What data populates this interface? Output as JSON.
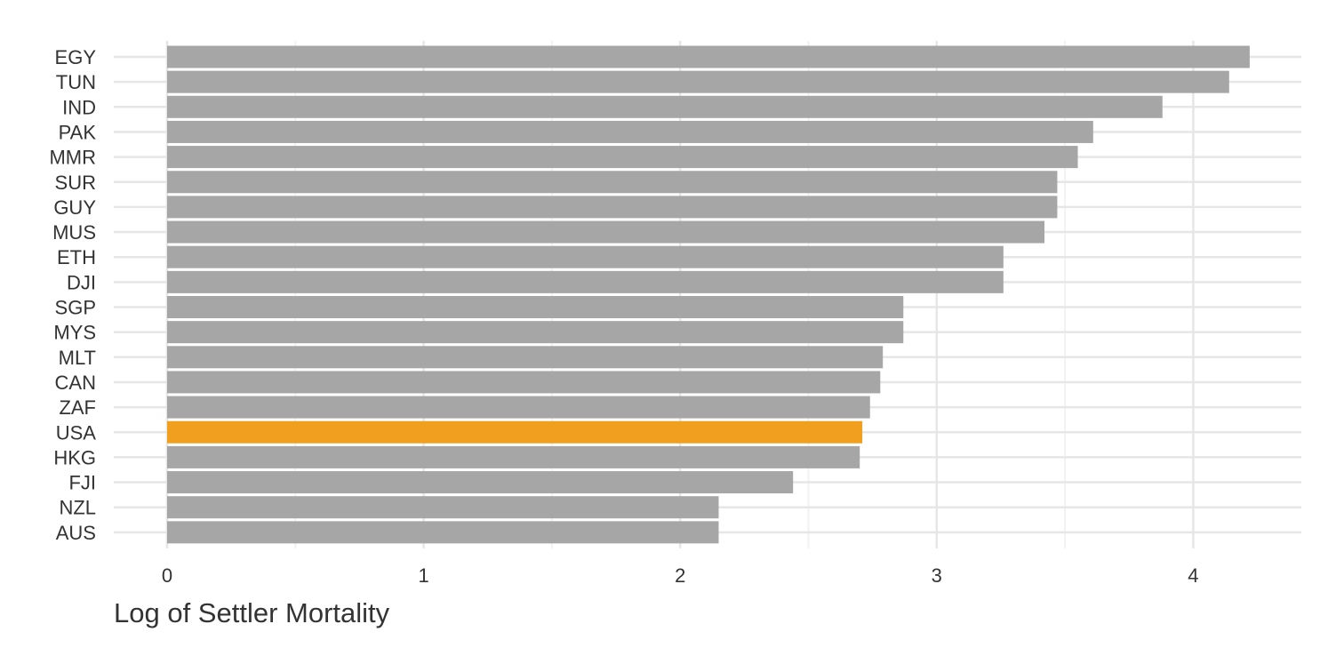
{
  "chart_data": {
    "type": "bar",
    "orientation": "horizontal",
    "title": "",
    "xlabel": "Log of Settler Mortality",
    "ylabel": "",
    "xlim": [
      0,
      4.43
    ],
    "xticks": [
      0,
      1,
      2,
      3,
      4
    ],
    "grid": true,
    "legend": "none",
    "highlight_category": "USA",
    "categories": [
      "EGY",
      "TUN",
      "IND",
      "PAK",
      "MMR",
      "SUR",
      "GUY",
      "MUS",
      "ETH",
      "DJI",
      "SGP",
      "MYS",
      "MLT",
      "CAN",
      "ZAF",
      "USA",
      "HKG",
      "FJI",
      "NZL",
      "AUS"
    ],
    "values": [
      4.22,
      4.14,
      3.88,
      3.61,
      3.55,
      3.47,
      3.47,
      3.42,
      3.26,
      3.26,
      2.87,
      2.87,
      2.79,
      2.78,
      2.74,
      2.71,
      2.7,
      2.44,
      2.15,
      2.15
    ],
    "colors": {
      "bar": "#a6a6a6",
      "highlight": "#f0a01e",
      "grid_major": "#e6e6e6",
      "grid_minor": "#f2f2f2"
    }
  }
}
